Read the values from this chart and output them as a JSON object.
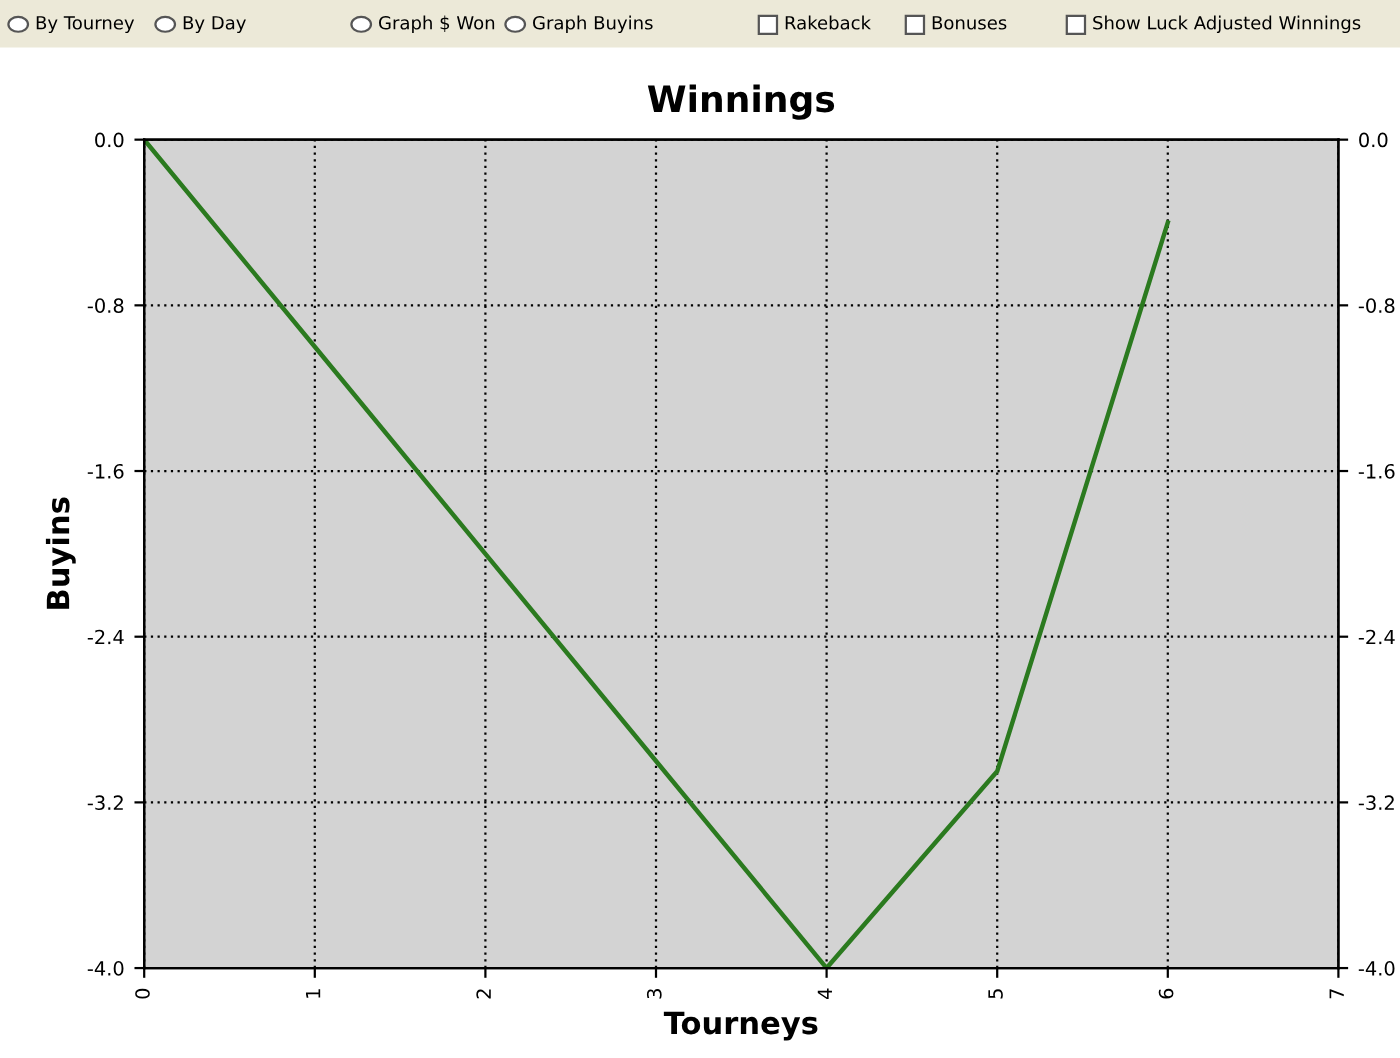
{
  "chart_data": {
    "type": "line",
    "title": "Winnings",
    "xlabel": "Tourneys",
    "ylabel": "Buyins",
    "annotations": [
      "By Tourney",
      "By Day",
      "Graph $ Won",
      "Graph Buyins",
      "Rakeback",
      "Bonuses",
      "Show Luck Adjusted Winnings"
    ],
    "x": [
      0,
      1,
      2,
      3,
      4,
      5,
      6
    ],
    "series": [
      {
        "color": "#2b7a1f",
        "values": [
          0.0,
          -1.0,
          -2.0,
          -3.0,
          -4.0,
          -3.05,
          -0.4
        ]
      }
    ],
    "xlim": [
      0,
      7
    ],
    "xticks": [
      0,
      1,
      2,
      3,
      4,
      5,
      6,
      7
    ],
    "ylim": [
      -4.0,
      0.0
    ],
    "yticks": [
      {
        "value": -4.0,
        "label": "-4.0"
      },
      {
        "value": -3.2,
        "label": "-3.2"
      },
      {
        "value": -2.4,
        "label": "-2.4"
      },
      {
        "value": -1.6,
        "label": "-1.6"
      },
      {
        "value": -0.8,
        "label": "-0.8"
      },
      {
        "value": 0.0,
        "label": "0.0"
      }
    ],
    "y2lim": [
      -4.0,
      0.0
    ],
    "y2ticks": [
      {
        "value": -4.0,
        "label": "-4.0"
      },
      {
        "value": -3.2,
        "label": "-3.2"
      },
      {
        "value": -2.4,
        "label": "-2.4"
      },
      {
        "value": -1.6,
        "label": "-1.6"
      },
      {
        "value": -0.8,
        "label": "-0.8"
      },
      {
        "value": 0.0,
        "label": "0.0"
      }
    ],
    "grid": true,
    "line_style": "solid"
  }
}
